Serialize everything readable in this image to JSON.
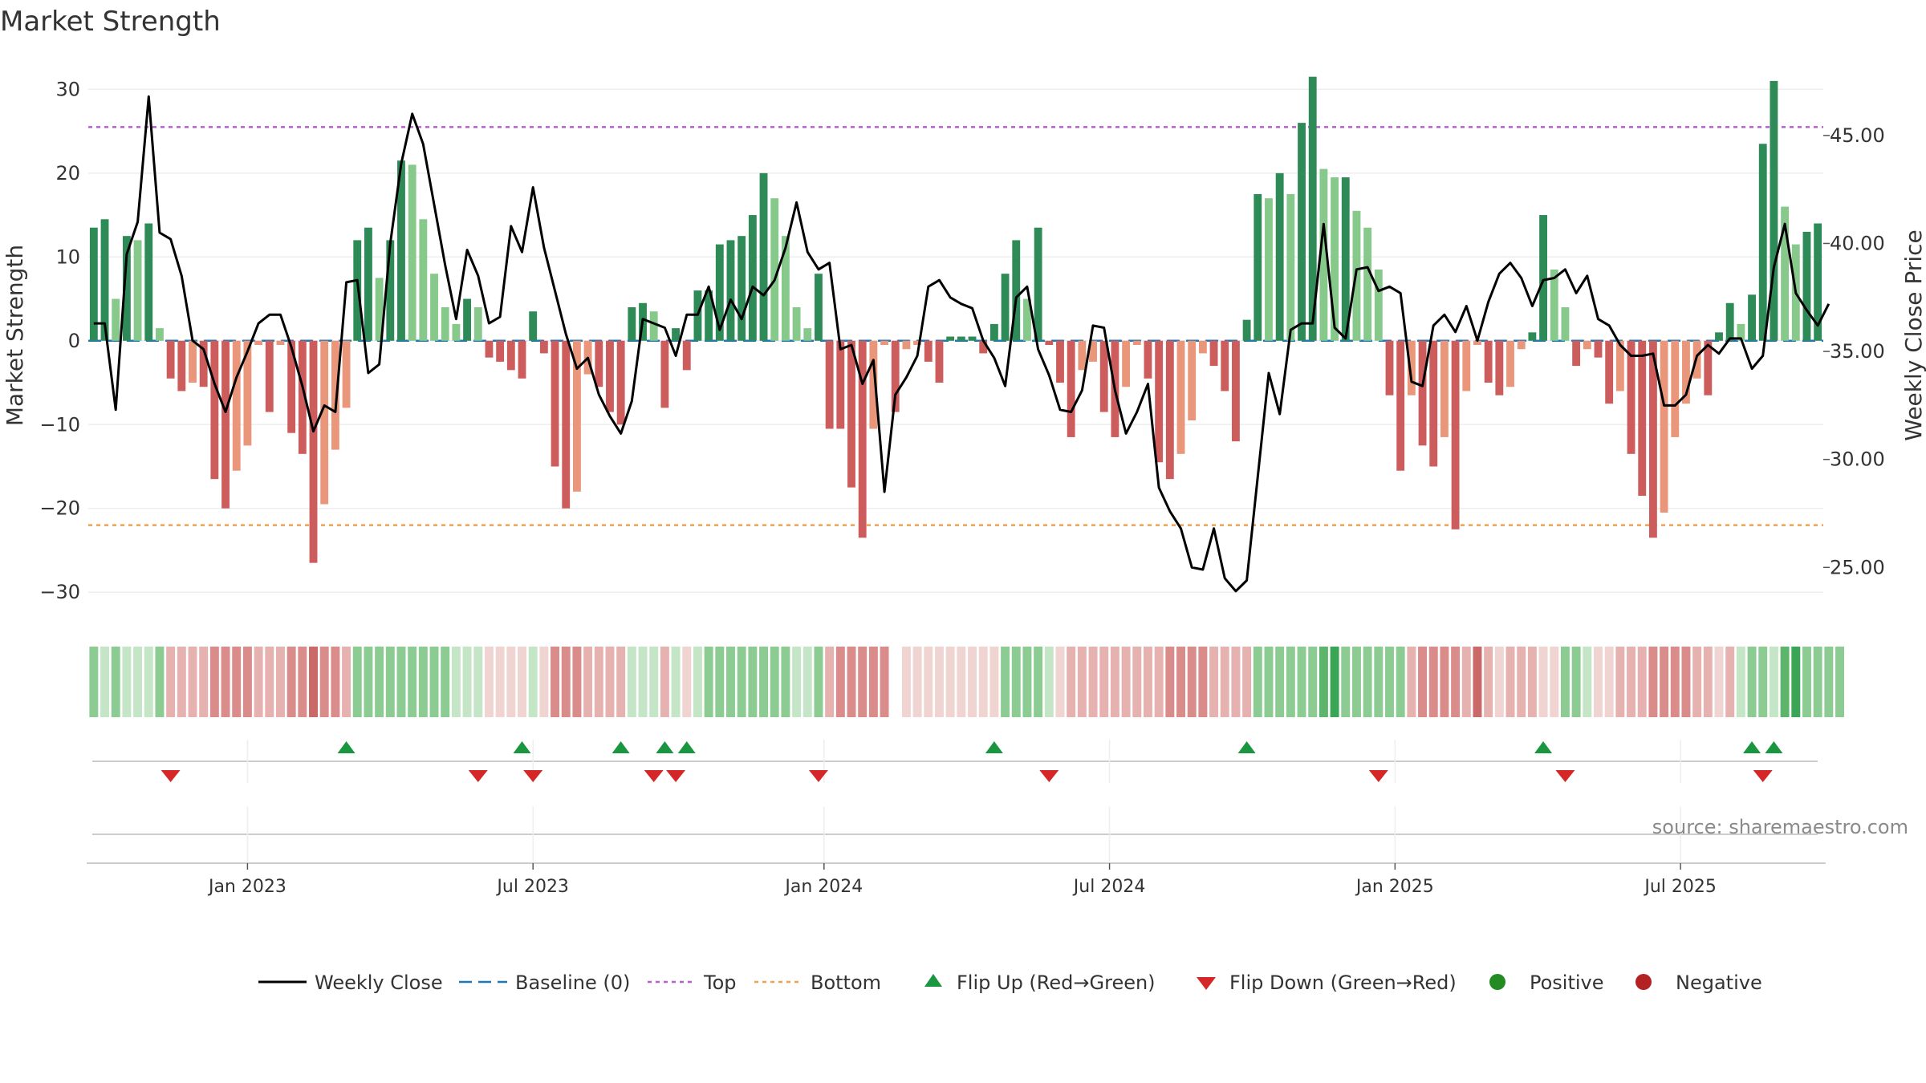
{
  "chart_data": {
    "type": "bar",
    "title": "Market Strength",
    "ylabel": "Market Strength",
    "y2label": "Weekly Close Price",
    "ylim": [
      -34,
      33
    ],
    "y2lim": [
      22.3,
      48.3
    ],
    "yticks": [
      30,
      20,
      10,
      0,
      -10,
      -20,
      -30
    ],
    "yticklabels": [
      "30",
      "20",
      "10",
      "0",
      "−10",
      "−20",
      "−30"
    ],
    "y2ticks": [
      45,
      40,
      35,
      30,
      25
    ],
    "y2ticklabels": [
      "45.00",
      "40.00",
      "35.00",
      "30.00",
      "25.00"
    ],
    "x_months": [
      "Jan 2023",
      "Jul 2023",
      "Jan 2024",
      "Jul 2024",
      "Jan 2025",
      "Jul 2025"
    ],
    "x_month_weeks": [
      14,
      40,
      66.5,
      92.5,
      118.5,
      144.5
    ],
    "top_level": 25.5,
    "bottom_level": -22,
    "baseline": 0,
    "strength": [
      13.5,
      14.5,
      5,
      12.5,
      12,
      14,
      1.5,
      -4.5,
      -6,
      -5,
      -5.5,
      -16.5,
      -20,
      -15.5,
      -12.5,
      -0.5,
      -8.5,
      -0.5,
      -11,
      -13.5,
      -26.5,
      -19.5,
      -13,
      -8,
      12,
      13.5,
      7.5,
      12,
      21.5,
      21,
      14.5,
      8,
      4,
      2,
      5,
      4,
      -2,
      -2.5,
      -3.5,
      -4.5,
      3.5,
      -1.5,
      -15,
      -20,
      -18,
      -4,
      -5.5,
      -8.5,
      -10,
      4,
      4.5,
      3.5,
      -8,
      1.5,
      -3.5,
      6,
      6,
      11.5,
      12,
      12.5,
      15,
      20,
      17,
      12.5,
      4,
      1.5,
      8,
      -10.5,
      -10.5,
      -17.5,
      -23.5,
      -10.5,
      -0.5,
      -8.5,
      -1,
      -0.5,
      -2.5,
      -5,
      0.5,
      0.5,
      0.5,
      -1.5,
      2,
      8,
      12,
      5,
      13.5,
      -0.5,
      -5,
      -11.5,
      -3.5,
      -2.5,
      -8.5,
      -11.5,
      -5.5,
      -0.5,
      -4.5,
      -14.5,
      -16.5,
      -13.5,
      -9.5,
      -1.5,
      -3,
      -6,
      -12,
      2.5,
      17.5,
      17,
      20,
      17.5,
      26,
      31.5,
      20.5,
      19.5,
      19.5,
      15.5,
      13.5,
      8.5,
      -6.5,
      -15.5,
      -6.5,
      -12.5,
      -15,
      -11.5,
      -22.5,
      -6,
      -0.5,
      -5,
      -6.5,
      -5.5,
      -1,
      1,
      15,
      8.5,
      4,
      -3,
      -1,
      -2,
      -7.5,
      -6,
      -13.5,
      -18.5,
      -23.5,
      -20.5,
      -11.5,
      -7.5,
      -4.5,
      -6.5,
      1,
      4.5,
      2,
      5.5,
      23.5,
      31,
      16,
      11.5,
      13,
      14
    ],
    "price": [
      36.3,
      36.3,
      32.3,
      39.5,
      41,
      46.8,
      40.5,
      40.2,
      38.5,
      35.5,
      35.1,
      33.5,
      32.2,
      33.8,
      35,
      36.3,
      36.7,
      36.7,
      35.2,
      33.4,
      31.3,
      32.5,
      32.2,
      38.2,
      38.3,
      34,
      34.4,
      40,
      43.7,
      46,
      44.6,
      41.8,
      39,
      36.5,
      39.7,
      38.5,
      36.3,
      36.6,
      40.8,
      39.6,
      42.6,
      39.8,
      37.8,
      35.8,
      34.2,
      34.7,
      33,
      32,
      31.2,
      32.7,
      36.5,
      36.3,
      36.1,
      34.8,
      36.7,
      36.7,
      38,
      36,
      37.4,
      36.5,
      38,
      37.6,
      38.3,
      39.8,
      41.9,
      39.6,
      38.8,
      39.1,
      35.1,
      35.3,
      33.5,
      34.6,
      28.5,
      33,
      33.8,
      34.8,
      38,
      38.3,
      37.5,
      37.2,
      37,
      35.5,
      34.7,
      33.4,
      37.5,
      38,
      35.1,
      33.9,
      32.3,
      32.2,
      33.2,
      36.2,
      36.1,
      33.2,
      31.2,
      32.2,
      33.5,
      28.7,
      27.6,
      26.8,
      25,
      24.9,
      26.8,
      24.5,
      23.9,
      24.4,
      29.2,
      34,
      32.1,
      36,
      36.3,
      36.3,
      40.9,
      36.1,
      35.6,
      38.8,
      38.9,
      37.8,
      38,
      37.7,
      33.6,
      33.4,
      36.2,
      36.7,
      35.9,
      37.1,
      35.5,
      37.3,
      38.6,
      39.1,
      38.4,
      37.1,
      38.3,
      38.4,
      38.8,
      37.7,
      38.5,
      36.5,
      36.2,
      35.3,
      34.8,
      34.8,
      34.9,
      32.5,
      32.5,
      33,
      34.8,
      35.3,
      34.9,
      35.6,
      35.6,
      34.2,
      34.8,
      38.9,
      40.9,
      37.7,
      36.9,
      36.2,
      37.2
    ],
    "lower_band_levels": [
      3,
      2,
      3,
      2,
      2,
      2,
      3,
      -3,
      -3,
      -3,
      -3,
      -4,
      -4,
      -4,
      -4,
      -3,
      -3,
      -3,
      -4,
      -4,
      -5,
      -4,
      -4,
      -3,
      3,
      3,
      3,
      3,
      3,
      3,
      3,
      3,
      3,
      2,
      2,
      2,
      -2,
      -2,
      -2,
      -2,
      2,
      -2,
      -4,
      -4,
      -4,
      -3,
      -3,
      -3,
      -3,
      2,
      2,
      2,
      -3,
      2,
      -2,
      2,
      3,
      3,
      3,
      3,
      3,
      3,
      3,
      3,
      2,
      2,
      3,
      -3,
      -4,
      -4,
      -4,
      -4,
      -4,
      null,
      -2,
      -2,
      -2,
      -2,
      -2,
      -2,
      -2,
      -2,
      -2,
      3,
      3,
      3,
      3,
      2,
      -2,
      -3,
      -3,
      -3,
      -3,
      -3,
      -3,
      -3,
      -3,
      -3,
      -4,
      -4,
      -4,
      -4,
      -3,
      -3,
      -3,
      -3,
      3,
      3,
      3,
      3,
      3,
      3,
      4,
      5,
      3,
      3,
      3,
      3,
      3,
      3,
      -3,
      -4,
      -4,
      -4,
      -4,
      -3,
      -5,
      -3,
      -2,
      -3,
      -3,
      -3,
      -2,
      -2,
      3,
      3,
      2,
      -2,
      -2,
      -3,
      -3,
      -3,
      -4,
      -4,
      -4,
      -4,
      -3,
      -3,
      -2,
      -3,
      2,
      3,
      3,
      2,
      4,
      5,
      3,
      3,
      3,
      3
    ],
    "flip_up_weeks": [
      23,
      39,
      48,
      52,
      54,
      82,
      105,
      132,
      151,
      153
    ],
    "flip_down_weeks": [
      7,
      35,
      40,
      51,
      53,
      66,
      87,
      117,
      134,
      152
    ],
    "legend": [
      "Weekly Close",
      "Baseline (0)",
      "Top",
      "Bottom",
      "Flip Up (Red→Green)",
      "Flip Down (Green→Red)",
      "Positive",
      "Negative"
    ],
    "colors": {
      "pos_strong": "#2e8b57",
      "pos_light": "#86c98a",
      "neg_strong": "#cd5c5c",
      "neg_light": "#e9967a",
      "top": "#b65fcf",
      "bottom": "#f0a050",
      "baseline": "#1f77b4",
      "line": "#000000",
      "flip_up": "#1a9641",
      "flip_down": "#d62728",
      "positive_dot": "#228b22",
      "negative_dot": "#b22222"
    }
  },
  "source": "source: sharemaestro.com"
}
